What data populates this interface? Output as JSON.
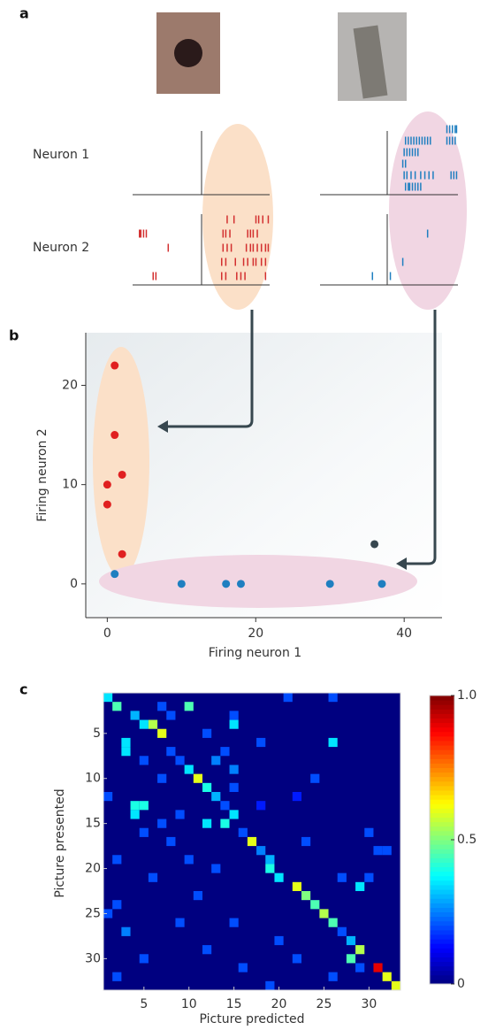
{
  "chart_data": [
    {
      "type": "raster",
      "panel": "a",
      "rows": [
        "Neuron 1",
        "Neuron 2"
      ],
      "xlim": [
        0,
        100
      ],
      "stimuli": [
        {
          "color": "#d32f2f",
          "neurons": [
            {
              "trials": []
            },
            {
              "trials": [
                [
                  69,
                  74,
                  90,
                  92,
                  95,
                  99
                ],
                [
                  5,
                  6,
                  8,
                  10,
                  66,
                  68,
                  71,
                  84,
                  86,
                  88,
                  91
                ],
                [
                  26,
                  66,
                  69,
                  72,
                  83,
                  86,
                  88,
                  91,
                  94,
                  97,
                  99
                ],
                [
                  65,
                  68,
                  75,
                  81,
                  84,
                  88,
                  90,
                  94,
                  97
                ],
                [
                  15,
                  17,
                  65,
                  68,
                  76,
                  79,
                  82,
                  97
                ]
              ]
            }
          ]
        },
        {
          "color": "#1f7fc0",
          "neurons": [
            {
              "trials": [
                [
                  92,
                  94,
                  96,
                  98,
                  99
                ],
                [
                  62,
                  64,
                  66,
                  68,
                  70,
                  72,
                  74,
                  76,
                  78,
                  80,
                  92,
                  94,
                  96,
                  98
                ],
                [
                  61,
                  63,
                  65,
                  67,
                  69,
                  71
                ],
                [
                  60,
                  62
                ],
                [
                  61,
                  63,
                  66,
                  69,
                  73,
                  76,
                  79,
                  82,
                  95,
                  97,
                  99
                ],
                [
                  62,
                  64,
                  65,
                  67,
                  69,
                  71,
                  73
                ]
              ]
            },
            {
              "trials": [
                [],
                [
                  78
                ],
                [],
                [
                  60
                ],
                [
                  38,
                  51
                ]
              ]
            }
          ]
        }
      ]
    },
    {
      "type": "scatter",
      "panel": "b",
      "x_label": "Firing neuron 1",
      "y_label": "Firing neuron 2",
      "xlim": [
        -2.9,
        45.1
      ],
      "ylim": [
        -3.4,
        25.3
      ],
      "xticks": [
        0,
        20,
        40
      ],
      "yticks": [
        0,
        10,
        20
      ],
      "series": [
        {
          "color": "#e02020",
          "x": [
            1,
            1,
            2,
            0,
            0,
            2
          ],
          "y": [
            22,
            15,
            11,
            10,
            8,
            3
          ]
        },
        {
          "color": "#1f7fc0",
          "x": [
            1,
            10,
            16,
            18,
            30,
            37
          ],
          "y": [
            1,
            0,
            0,
            0,
            0,
            0
          ]
        },
        {
          "color": "#37474f",
          "x": [
            36
          ],
          "y": [
            4
          ]
        }
      ]
    },
    {
      "type": "heatmap",
      "panel": "c",
      "x_label": "Picture predicted",
      "y_label": "Picture presented",
      "xlim": [
        0.5,
        33.5
      ],
      "ylim": [
        0.5,
        33.5
      ],
      "xticks": [
        5,
        10,
        15,
        20,
        25,
        30
      ],
      "yticks": [
        5,
        10,
        15,
        20,
        25,
        30
      ],
      "clim": [
        0,
        1
      ],
      "cticks": [
        0,
        0.5,
        {
          "value": 1,
          "label": "1.0"
        }
      ],
      "cells": [
        [
          1,
          1,
          0.35
        ],
        [
          2,
          2,
          0.45
        ],
        [
          3,
          4,
          0.3
        ],
        [
          4,
          5,
          0.35
        ],
        [
          4,
          6,
          0.55
        ],
        [
          5,
          7,
          0.6
        ],
        [
          6,
          3,
          0.35
        ],
        [
          7,
          8,
          0.2
        ],
        [
          8,
          9,
          0.2
        ],
        [
          9,
          10,
          0.35
        ],
        [
          10,
          11,
          0.6
        ],
        [
          11,
          12,
          0.4
        ],
        [
          12,
          13,
          0.3
        ],
        [
          13,
          14,
          0.2
        ],
        [
          14,
          15,
          0.35
        ],
        [
          15,
          14,
          0.4
        ],
        [
          16,
          16,
          0.2
        ],
        [
          17,
          17,
          0.6
        ],
        [
          18,
          18,
          0.25
        ],
        [
          19,
          19,
          0.3
        ],
        [
          20,
          19,
          0.4
        ],
        [
          21,
          20,
          0.35
        ],
        [
          22,
          22,
          0.6
        ],
        [
          23,
          23,
          0.5
        ],
        [
          24,
          24,
          0.45
        ],
        [
          25,
          25,
          0.55
        ],
        [
          26,
          26,
          0.45
        ],
        [
          27,
          27,
          0.2
        ],
        [
          28,
          28,
          0.3
        ],
        [
          29,
          29,
          0.55
        ],
        [
          30,
          28,
          0.45
        ],
        [
          31,
          31,
          0.9
        ],
        [
          32,
          32,
          0.6
        ],
        [
          33,
          33,
          0.6
        ],
        [
          2,
          10,
          0.45
        ],
        [
          2,
          7,
          0.2
        ],
        [
          1,
          21,
          0.2
        ],
        [
          1,
          26,
          0.2
        ],
        [
          3,
          8,
          0.2
        ],
        [
          4,
          15,
          0.35
        ],
        [
          6,
          26,
          0.35
        ],
        [
          5,
          12,
          0.2
        ],
        [
          7,
          3,
          0.35
        ],
        [
          7,
          14,
          0.2
        ],
        [
          8,
          5,
          0.2
        ],
        [
          8,
          13,
          0.25
        ],
        [
          9,
          15,
          0.25
        ],
        [
          10,
          7,
          0.2
        ],
        [
          11,
          15,
          0.2
        ],
        [
          12,
          1,
          0.2
        ],
        [
          12,
          22,
          0.15
        ],
        [
          13,
          4,
          0.4
        ],
        [
          13,
          5,
          0.4
        ],
        [
          14,
          4,
          0.35
        ],
        [
          14,
          9,
          0.2
        ],
        [
          13,
          18,
          0.15
        ],
        [
          15,
          7,
          0.2
        ],
        [
          15,
          12,
          0.35
        ],
        [
          16,
          5,
          0.2
        ],
        [
          16,
          30,
          0.2
        ],
        [
          17,
          8,
          0.2
        ],
        [
          17,
          23,
          0.2
        ],
        [
          18,
          31,
          0.2
        ],
        [
          18,
          32,
          0.2
        ],
        [
          19,
          2,
          0.2
        ],
        [
          19,
          10,
          0.2
        ],
        [
          20,
          13,
          0.2
        ],
        [
          21,
          6,
          0.2
        ],
        [
          21,
          27,
          0.2
        ],
        [
          22,
          29,
          0.35
        ],
        [
          23,
          11,
          0.2
        ],
        [
          24,
          2,
          0.2
        ],
        [
          25,
          1,
          0.2
        ],
        [
          26,
          15,
          0.2
        ],
        [
          26,
          9,
          0.2
        ],
        [
          27,
          3,
          0.25
        ],
        [
          28,
          20,
          0.2
        ],
        [
          29,
          12,
          0.2
        ],
        [
          30,
          22,
          0.2
        ],
        [
          30,
          5,
          0.2
        ],
        [
          31,
          16,
          0.2
        ],
        [
          32,
          2,
          0.2
        ],
        [
          32,
          26,
          0.2
        ],
        [
          33,
          19,
          0.2
        ],
        [
          31,
          29,
          0.2
        ],
        [
          6,
          18,
          0.2
        ],
        [
          10,
          24,
          0.2
        ],
        [
          3,
          15,
          0.2
        ],
        [
          21,
          30,
          0.2
        ]
      ]
    }
  ]
}
